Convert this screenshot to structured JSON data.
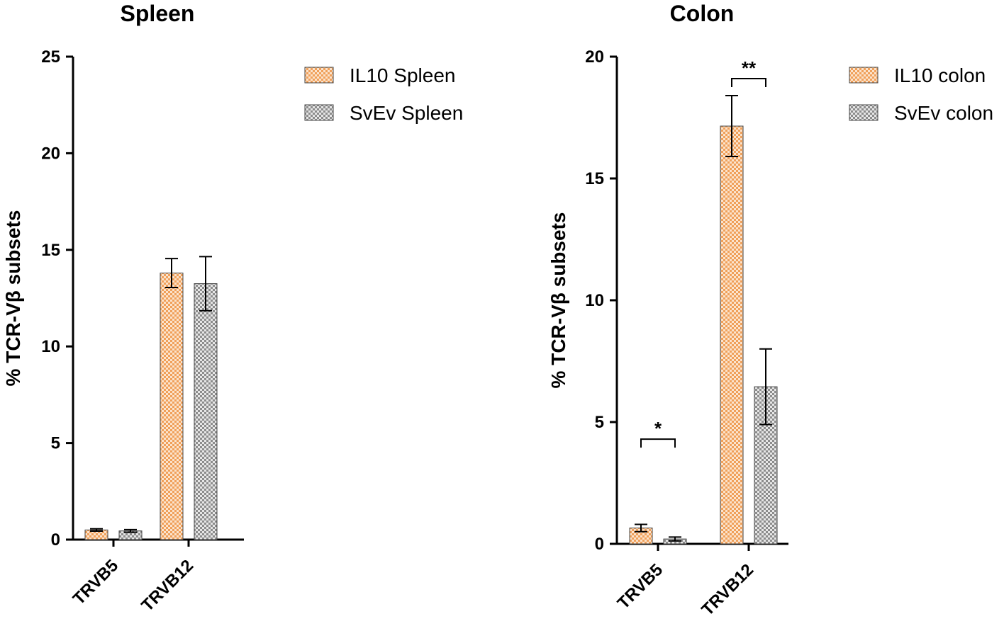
{
  "chart_data": [
    {
      "type": "bar",
      "title": "Spleen",
      "xlabel": "",
      "ylabel": "% TCR-Vβ subsets",
      "ylim": [
        0,
        25
      ],
      "yticks": [
        "0",
        "5",
        "10",
        "15",
        "20",
        "25"
      ],
      "categories": [
        "TRVB5",
        "TRVB12"
      ],
      "legend_position": "top-right",
      "series": [
        {
          "name": "IL10 Spleen",
          "color": "#f2a460",
          "pattern": "checker",
          "values": [
            0.5,
            13.8
          ],
          "errors": [
            0.06,
            0.75
          ]
        },
        {
          "name": "SvEv Spleen",
          "color": "#9a9a9a",
          "pattern": "checker",
          "values": [
            0.45,
            13.25
          ],
          "errors": [
            0.07,
            1.4
          ]
        }
      ],
      "annotations": []
    },
    {
      "type": "bar",
      "title": "Colon",
      "xlabel": "",
      "ylabel": "% TCR-Vβ subsets",
      "ylim": [
        0,
        20
      ],
      "yticks": [
        "0",
        "5",
        "10",
        "15",
        "20"
      ],
      "categories": [
        "TRVB5",
        "TRVB12"
      ],
      "legend_position": "top-right",
      "series": [
        {
          "name": "IL10 colon",
          "color": "#f2a460",
          "pattern": "checker",
          "values": [
            0.65,
            17.15
          ],
          "errors": [
            0.15,
            1.25
          ]
        },
        {
          "name": "SvEv colon",
          "color": "#9a9a9a",
          "pattern": "checker",
          "values": [
            0.2,
            6.45
          ],
          "errors": [
            0.08,
            1.55
          ]
        }
      ],
      "annotations": [
        {
          "category": "TRVB5",
          "text": "*",
          "y": 4.3
        },
        {
          "category": "TRVB12",
          "text": "**",
          "y": 19.1
        }
      ]
    }
  ]
}
